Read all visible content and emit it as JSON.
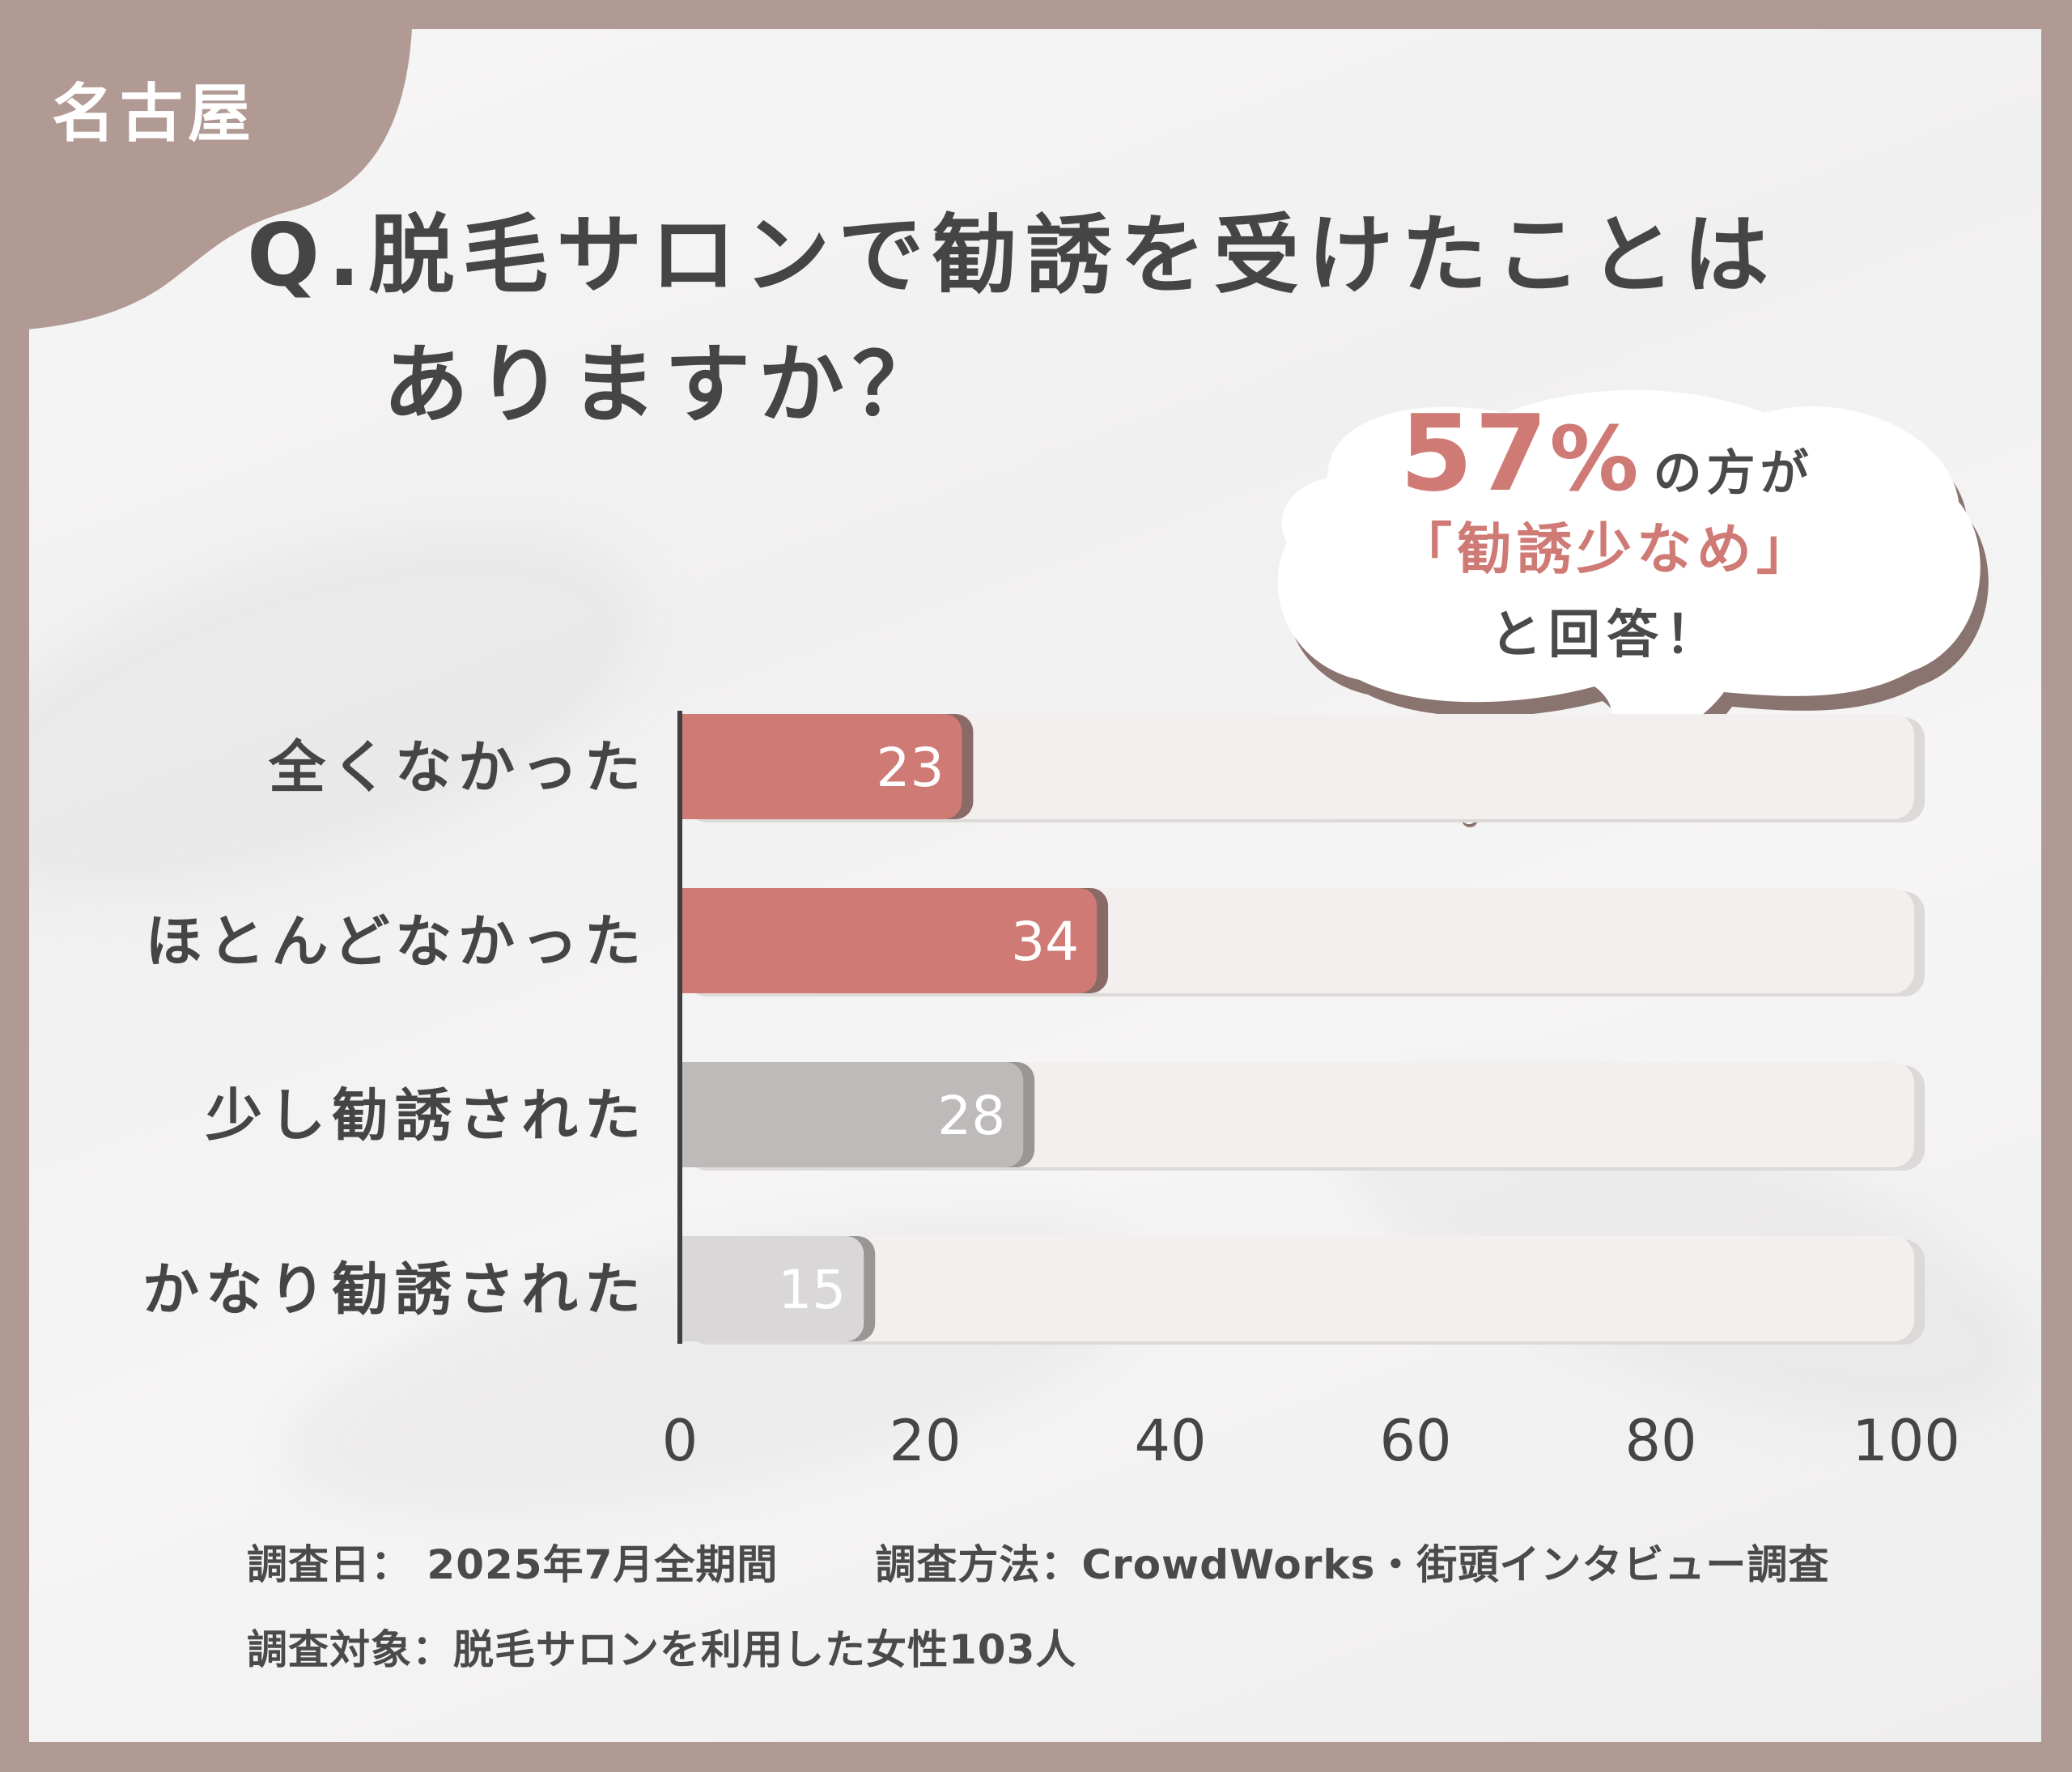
{
  "badge": {
    "city": "名古屋"
  },
  "question": {
    "line1": "Q.脱毛サロンで勧誘を受けたことは",
    "line2": "ありますか？"
  },
  "callout": {
    "percent": "57",
    "percent_sign": "%",
    "suffix": "の方が",
    "highlight": "「勧誘少なめ」",
    "closing": "と回答！"
  },
  "colors": {
    "background": "#b19a93",
    "accent_red": "#cf7a75",
    "bar_gray_mid": "#bdbab9",
    "bar_gray_light": "#d9d7d7",
    "track": "#f2efee"
  },
  "chart_data": {
    "type": "bar",
    "orientation": "horizontal",
    "categories": [
      "全くなかった",
      "ほとんどなかった",
      "少し勧誘された",
      "かなり勧誘された"
    ],
    "values": [
      23,
      34,
      28,
      15
    ],
    "bar_colors": [
      "#cf7a75",
      "#cf7a75",
      "#bdbab9",
      "#d9d7d7"
    ],
    "xlim": [
      0,
      100
    ],
    "xticks": [
      "0",
      "20",
      "40",
      "60",
      "80",
      "100"
    ],
    "grid": false,
    "legend": "none"
  },
  "footnotes": {
    "date": "調査日： 2025年7月全期間",
    "method": "調査方法：CrowdWorks・街頭インタビュー調査",
    "target": "調査対象：脱毛サロンを利用した女性103人"
  }
}
